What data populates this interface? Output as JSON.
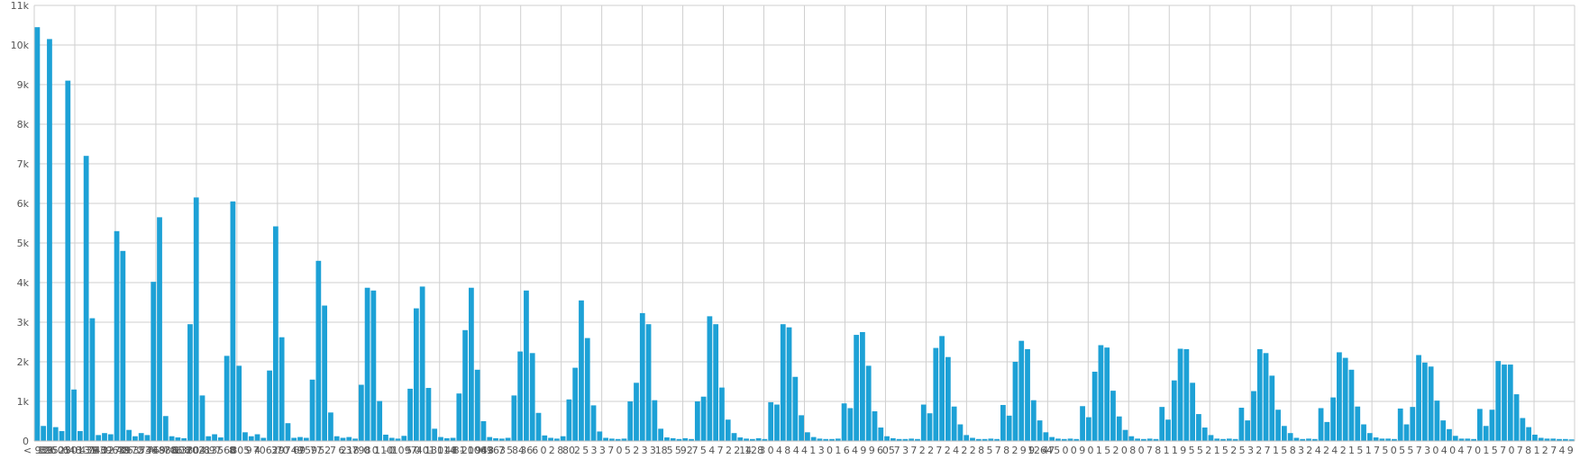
{
  "chart_data": {
    "type": "bar",
    "title": "",
    "xlabel": "",
    "ylabel": "",
    "ylim": [
      0,
      11000
    ],
    "yticks": [
      {
        "value": 0,
        "label": "0"
      },
      {
        "value": 1000,
        "label": "1k"
      },
      {
        "value": 2000,
        "label": "2k"
      },
      {
        "value": 3000,
        "label": "3k"
      },
      {
        "value": 4000,
        "label": "4k"
      },
      {
        "value": 5000,
        "label": "5k"
      },
      {
        "value": 6000,
        "label": "6k"
      },
      {
        "value": 7000,
        "label": "7k"
      },
      {
        "value": 8000,
        "label": "8k"
      },
      {
        "value": 9000,
        "label": "9k"
      },
      {
        "value": 10000,
        "label": "10k"
      },
      {
        "value": 11000,
        "label": "11k"
      }
    ],
    "grid": true,
    "legend": "none",
    "bar_color": "#1da1d6",
    "x_tick_labels": [
      "< 988",
      "126",
      "39525",
      "01",
      "648",
      "30131",
      "439",
      "740",
      "6396",
      "3270",
      "48",
      "3972",
      "6374",
      "536",
      "769",
      "4888",
      "706",
      "608",
      "13804",
      "2021",
      "8",
      "97",
      "3560",
      "8",
      "805",
      "9",
      "4",
      "7062",
      "3",
      "70",
      "9749",
      "69",
      "759",
      "77",
      "52",
      "7",
      "6",
      "218",
      "3798",
      "0",
      "0",
      "110",
      "0",
      "– 1097",
      "5",
      "0",
      "401",
      "130",
      "– 114",
      "48",
      "81",
      "20",
      "– 1061",
      "943",
      "4963",
      "7",
      "5",
      "84",
      "36",
      "6",
      "0",
      "2",
      "8",
      "80",
      "2",
      "5",
      "3",
      "3",
      "7",
      "0",
      "5",
      "2",
      "3",
      "3",
      "18",
      "5",
      "5",
      "92",
      "7",
      "5",
      "4",
      "7",
      "2",
      "2",
      "14",
      "128",
      "3",
      "0",
      "4",
      "8",
      "4",
      "4",
      "1",
      "3",
      "0",
      "1",
      "6",
      "4",
      "9",
      "9",
      "6",
      "05",
      "7",
      "3",
      "7",
      "2",
      "2",
      "7",
      "2",
      "4",
      "2",
      "2",
      "8",
      "5",
      "7",
      "8",
      "2",
      "9",
      "9",
      "1264",
      "47",
      "5",
      "0",
      "0",
      "9",
      "0",
      "1",
      "5",
      "2",
      "0",
      "8",
      "0",
      "7",
      "8",
      "1",
      "1",
      "9",
      "5",
      "5",
      "2",
      "1",
      "5",
      "2",
      "5",
      "3",
      "2",
      "7",
      "1",
      "5",
      "8",
      "3",
      "2",
      "4",
      "2",
      "4",
      "2",
      "1",
      "5",
      "1",
      "7",
      "5",
      "0",
      "5",
      "5",
      "7",
      "3",
      "0",
      "4",
      "0",
      "4",
      "7",
      "0",
      "1",
      "5",
      "7",
      "0",
      "7",
      "8",
      "1",
      "2",
      "7",
      "4",
      "9"
    ],
    "values": [
      10450,
      380,
      10150,
      350,
      250,
      9100,
      1300,
      250,
      7200,
      3100,
      150,
      200,
      170,
      5300,
      4800,
      280,
      120,
      200,
      150,
      4020,
      5650,
      630,
      120,
      90,
      70,
      2950,
      6150,
      1150,
      120,
      170,
      90,
      2150,
      6050,
      1900,
      220,
      120,
      170,
      80,
      1780,
      5420,
      2620,
      450,
      80,
      100,
      80,
      1550,
      4550,
      3420,
      720,
      120,
      80,
      100,
      60,
      1420,
      3870,
      3800,
      1010,
      160,
      80,
      60,
      130,
      1320,
      3350,
      3900,
      1340,
      310,
      100,
      70,
      80,
      1200,
      2800,
      3870,
      1800,
      500,
      100,
      70,
      60,
      80,
      1150,
      2260,
      3800,
      2220,
      710,
      140,
      80,
      60,
      120,
      1050,
      1850,
      3550,
      2600,
      900,
      240,
      80,
      60,
      50,
      60,
      1000,
      1470,
      3230,
      2950,
      1030,
      310,
      90,
      70,
      50,
      70,
      50,
      1000,
      1120,
      3150,
      2950,
      1350,
      540,
      200,
      90,
      60,
      50,
      70,
      50,
      980,
      920,
      2950,
      2870,
      1620,
      650,
      220,
      100,
      60,
      50,
      50,
      60,
      950,
      830,
      2680,
      2750,
      1900,
      750,
      340,
      120,
      70,
      50,
      50,
      60,
      50,
      920,
      700,
      2350,
      2650,
      2120,
      870,
      420,
      150,
      80,
      50,
      50,
      60,
      50,
      910,
      640,
      2000,
      2530,
      2320,
      1030,
      520,
      220,
      100,
      60,
      50,
      60,
      50,
      880,
      600,
      1750,
      2420,
      2360,
      1270,
      620,
      280,
      120,
      60,
      50,
      60,
      50,
      860,
      540,
      1530,
      2330,
      2320,
      1470,
      680,
      340,
      150,
      60,
      50,
      60,
      50,
      840,
      520,
      1260,
      2320,
      2220,
      1650,
      790,
      380,
      200,
      80,
      50,
      60,
      50,
      830,
      480,
      1100,
      2240,
      2100,
      1800,
      870,
      420,
      200,
      90,
      60,
      60,
      50,
      820,
      420,
      860,
      2170,
      1980,
      1880,
      1020,
      520,
      300,
      130,
      60,
      60,
      50,
      810,
      380,
      790,
      2020,
      1930,
      1930,
      1180,
      580,
      350,
      160,
      80,
      60,
      60,
      50,
      50,
      40
    ]
  }
}
